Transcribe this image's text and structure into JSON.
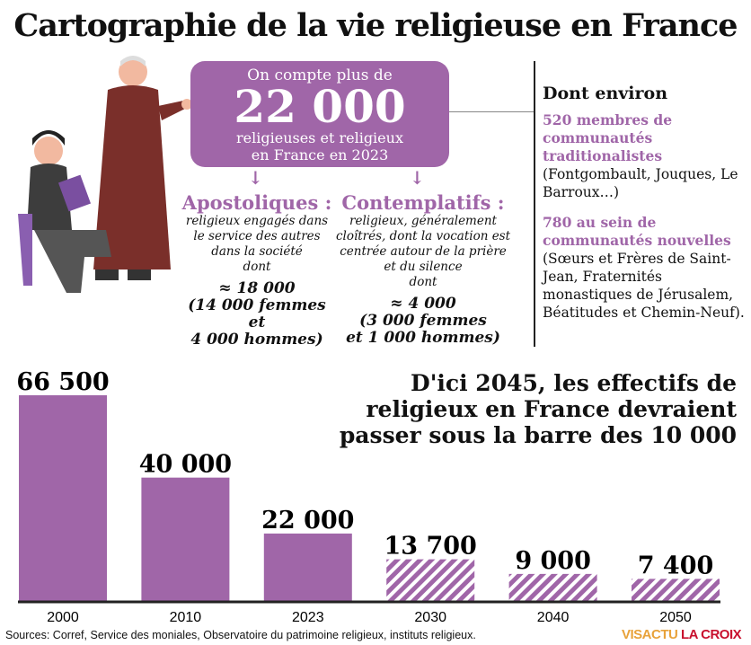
{
  "title": "Cartographie de la vie religieuse en France",
  "box": {
    "line1": "On compte plus de",
    "big": "22 000",
    "line3": "religieuses et religieux",
    "line4": "en France en 2023"
  },
  "arrow": "↓",
  "apostoliques": {
    "title": "Apostoliques :",
    "desc": [
      "religieux engagés dans",
      "le service des autres",
      "dans la société",
      "dont"
    ],
    "num": [
      "≈ 18 000",
      "(14 000 femmes",
      "et",
      "4 000 hommes)"
    ]
  },
  "contemplatifs": {
    "title": "Contemplatifs :",
    "desc": [
      "religieux, généralement",
      "cloîtrés, dont la vocation est",
      "centrée autour de la prière",
      "et du silence",
      "dont"
    ],
    "num": [
      "≈ 4 000",
      "(3 000 femmes",
      "et 1 000 hommes)"
    ]
  },
  "side": {
    "heading": "Dont environ",
    "p1_hl": "520 membres de communautés traditionalistes",
    "p1_rest": " (Fontgombault, Jouques, Le Barroux…)",
    "p2_hl": "780 au sein de communautés nouvelles",
    "p2_rest": " (Sœurs et Frères de Saint-Jean, Fraternités monastiques de Jérusalem, Béatitudes et Chemin-Neuf)."
  },
  "headline": "D'ici 2045, les effectifs de religieux en France devraient passer sous la barre des 10 000",
  "sources": "Sources: Corref, Service des moniales, Observatoire du patrimoine religieux, instituts religieux.",
  "logo": {
    "a": "VISACTU",
    "b": "LA CROIX"
  },
  "colors": {
    "purple": "#a066a8",
    "logo_orange": "#e8a23a",
    "logo_red": "#c8102e"
  },
  "chart_data": {
    "type": "bar",
    "categories": [
      "2000",
      "2010",
      "2023",
      "2030",
      "2040",
      "2050"
    ],
    "values": [
      66500,
      40000,
      22000,
      13700,
      9000,
      7400
    ],
    "labels": [
      "66 500",
      "40 000",
      "22 000",
      "13 700",
      "9 000",
      "7 400"
    ],
    "projected": [
      false,
      false,
      false,
      true,
      true,
      true
    ],
    "title": "D'ici 2045, les effectifs de religieux en France devraient passer sous la barre des 10 000",
    "ylim": [
      0,
      66500
    ],
    "grid": false
  }
}
